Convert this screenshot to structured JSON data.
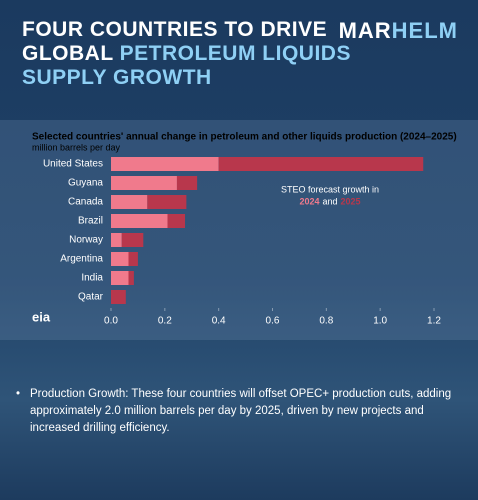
{
  "header": {
    "title_line1": "FOUR COUNTRIES TO DRIVE",
    "title_line2_a": "GLOBAL",
    "title_line2_b": "PETROLEUM LIQUIDS",
    "title_line3": "SUPPLY GROWTH",
    "logo_a": "MAR",
    "logo_b": "HELM"
  },
  "chart_data": {
    "type": "bar",
    "orientation": "horizontal",
    "stacked": true,
    "title": "Selected countries' annual change in petroleum and other liquids production (2024–2025)",
    "subtitle": "million barrels per day",
    "categories": [
      "United States",
      "Guyana",
      "Canada",
      "Brazil",
      "Norway",
      "Argentina",
      "India",
      "Qatar"
    ],
    "series": [
      {
        "name": "2024",
        "color": "#f07a8c",
        "values": [
          0.4,
          0.245,
          0.135,
          0.21,
          0.04,
          0.065,
          0.065,
          0
        ]
      },
      {
        "name": "2025",
        "color": "#b8374c",
        "values": [
          0.76,
          0.075,
          0.145,
          0.065,
          0.08,
          0.035,
          0.02,
          0.055
        ]
      }
    ],
    "xlim": [
      0,
      1.2
    ],
    "xticks": [
      {
        "value": 0,
        "label": "0.0"
      },
      0.2,
      0.4,
      0.6,
      0.8,
      {
        "value": 1,
        "label": "1.0"
      },
      1.2
    ],
    "annotation": "STEO forecast growth in",
    "annotation_joiner": "and",
    "source_logo": "eia"
  },
  "notes": [
    "Production Growth: These four countries will offset OPEC+ production cuts, adding approximately 2.0 million barrels per day by 2025, driven by new projects and increased drilling efficiency."
  ]
}
